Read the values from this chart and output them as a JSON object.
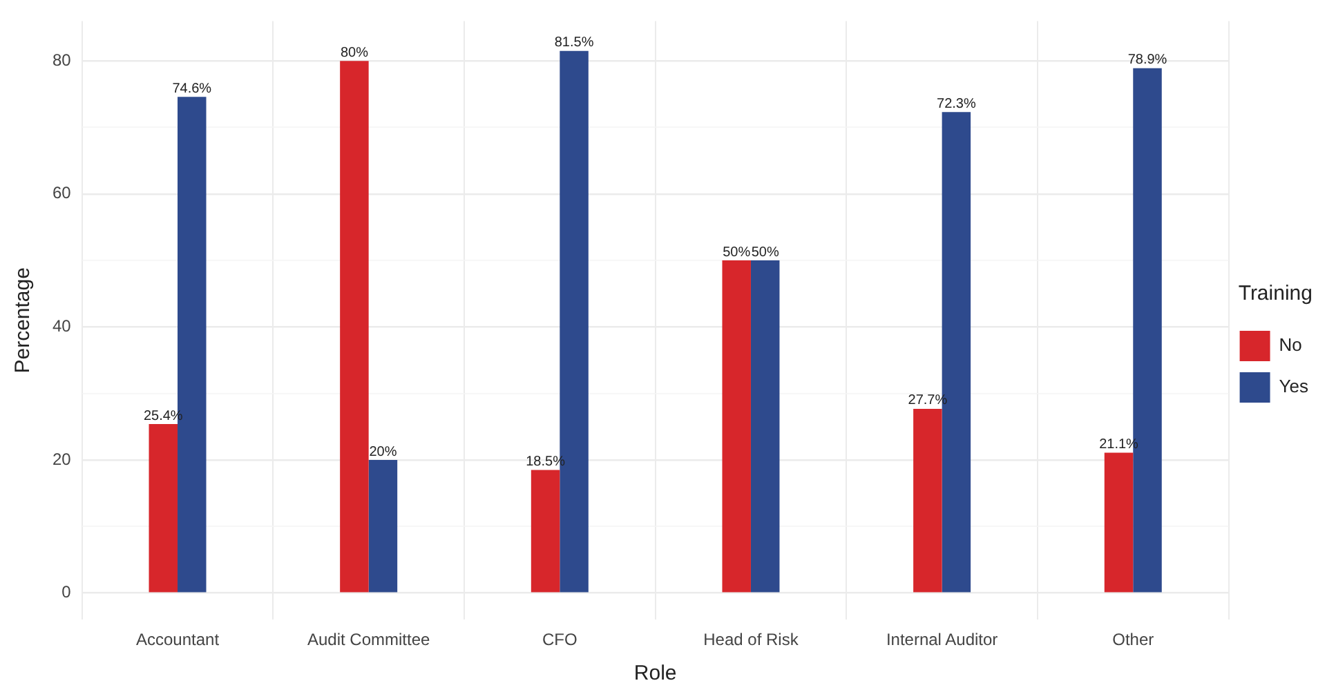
{
  "chart_data": {
    "type": "bar",
    "xlabel": "Role",
    "ylabel": "Percentage",
    "legend_title": "Training",
    "legend": "right",
    "grid": true,
    "categories": [
      "Accountant",
      "Audit Committee",
      "CFO",
      "Head of Risk",
      "Internal Auditor",
      "Other"
    ],
    "series": [
      {
        "name": "No",
        "color": "#d7262b",
        "values": [
          25.4,
          80,
          18.5,
          50,
          27.7,
          21.1
        ],
        "value_labels": [
          "25.4%",
          "80%",
          "18.5%",
          "50%",
          "27.7%",
          "21.1%"
        ]
      },
      {
        "name": "Yes",
        "color": "#2e4a8d",
        "values": [
          74.6,
          20,
          81.5,
          50,
          72.3,
          78.9
        ],
        "value_labels": [
          "74.6%",
          "20%",
          "81.5%",
          "50%",
          "72.3%",
          "78.9%"
        ]
      }
    ],
    "ylim": [
      -4,
      86
    ],
    "yticks": [
      0,
      {
        "value": 10,
        "label": null
      },
      20,
      {
        "value": 30,
        "label": null
      },
      40,
      {
        "value": 50,
        "label": null
      },
      60,
      {
        "value": 70,
        "label": null
      },
      80
    ]
  }
}
